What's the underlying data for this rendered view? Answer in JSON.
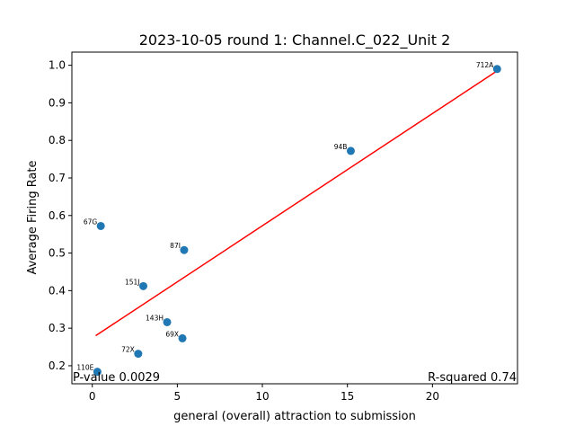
{
  "chart_data": {
    "type": "scatter",
    "title": "2023-10-05 round 1: Channel.C_022_Unit 2",
    "xlabel": "general (overall) attraction to submission",
    "ylabel": "Average Firing Rate",
    "xlim": [
      -1.2,
      25
    ],
    "ylim": [
      0.152,
      1.035
    ],
    "xticks": [
      0,
      5,
      10,
      15,
      20
    ],
    "yticks": [
      0.2,
      0.3,
      0.4,
      0.5,
      0.6,
      0.7,
      0.8,
      0.9,
      1.0
    ],
    "xtick_labels": [
      "0",
      "5",
      "10",
      "15",
      "20"
    ],
    "ytick_labels": [
      "0.2",
      "0.3",
      "0.4",
      "0.5",
      "0.6",
      "0.7",
      "0.8",
      "0.9",
      "1.0"
    ],
    "grid": false,
    "points": [
      {
        "label": "67G",
        "x": 0.5,
        "y": 0.572
      },
      {
        "label": "87I",
        "x": 5.4,
        "y": 0.508
      },
      {
        "label": "151J",
        "x": 3.0,
        "y": 0.412
      },
      {
        "label": "143H",
        "x": 4.4,
        "y": 0.316
      },
      {
        "label": "69X",
        "x": 5.3,
        "y": 0.273
      },
      {
        "label": "72X",
        "x": 2.7,
        "y": 0.232
      },
      {
        "label": "110E",
        "x": 0.3,
        "y": 0.184
      },
      {
        "label": "94B",
        "x": 15.2,
        "y": 0.772
      },
      {
        "label": "712A",
        "x": 23.8,
        "y": 0.99
      }
    ],
    "fit_line": {
      "x": [
        0.2,
        23.8
      ],
      "y": [
        0.28,
        0.985
      ],
      "color": "#ff0000"
    },
    "point_color": "#1f77b4",
    "annotations": {
      "p_value": "P-value 0.0029",
      "r_squared": "R-squared 0.74"
    }
  }
}
